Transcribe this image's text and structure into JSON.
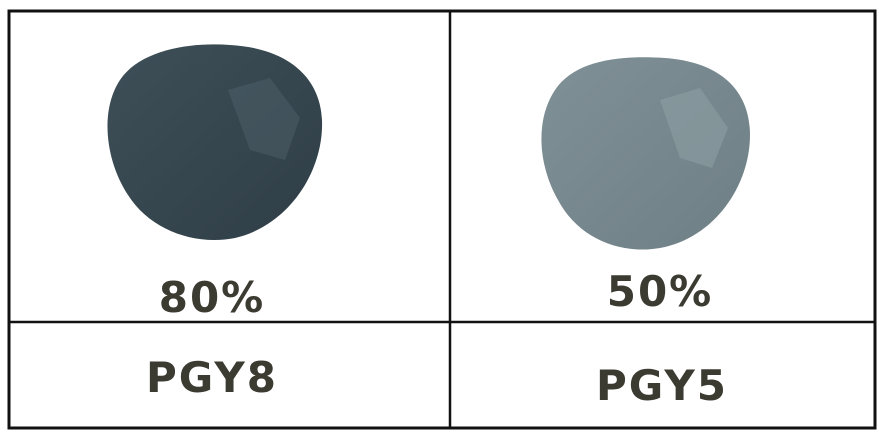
{
  "table": {
    "rows": [
      [
        "80%",
        "50%"
      ],
      [
        "PGY8",
        "PGY5"
      ]
    ]
  }
}
